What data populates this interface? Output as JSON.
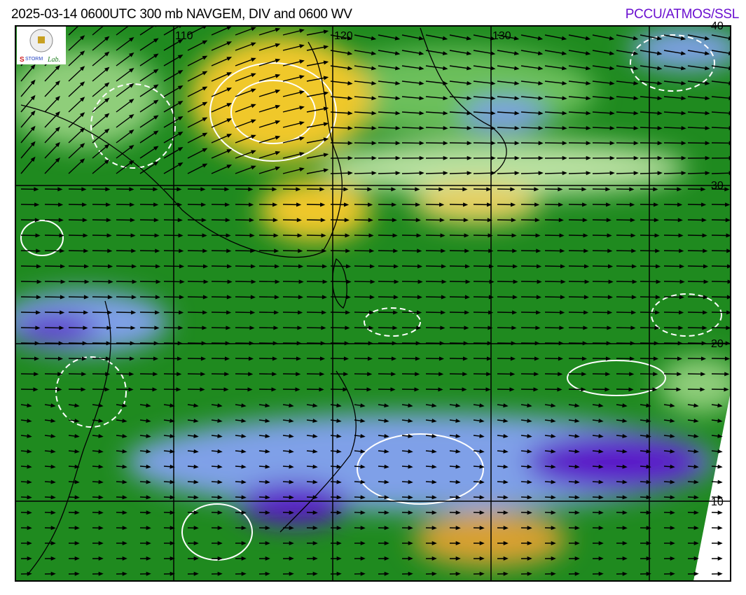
{
  "header": {
    "title": "2025-03-14 0600UTC 300 mb NAVGEM, DIV and 0600 WV",
    "credit": "PCCU/ATMOS/SSL"
  },
  "logo": {
    "text": "Severe Storm Lab."
  },
  "map": {
    "longitude_labels": [
      "110",
      "120",
      "130"
    ],
    "latitude_labels": [
      "40",
      "30",
      "20",
      "10"
    ],
    "colors": {
      "moist": "#1f8a1f",
      "light_green": "#8fce7a",
      "dry_yellow": "#f0c82a",
      "cold_blue": "#7fa0e8",
      "deep_purple": "#5a18c8",
      "contour": "#ffffff",
      "wind_vector": "#000000"
    },
    "layers": [
      "water vapor imagery",
      "divergence contours",
      "wind vectors",
      "coastlines",
      "lat-lon grid"
    ]
  }
}
